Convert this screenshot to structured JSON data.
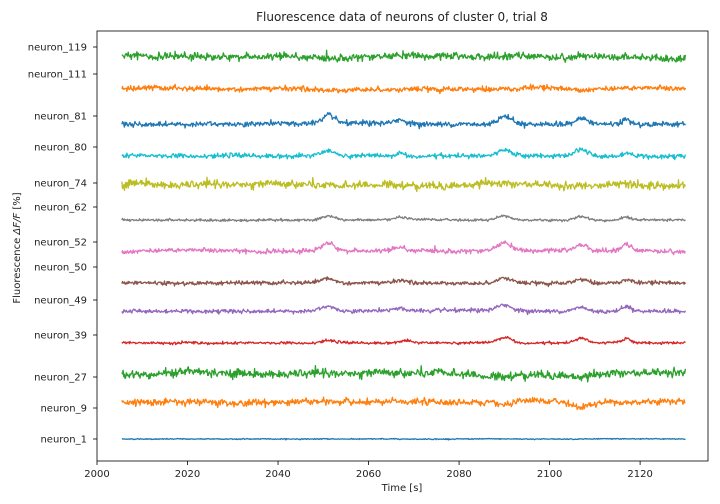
{
  "chart_data": {
    "type": "line",
    "title": "Fluorescence data of neurons of cluster 0, trial 8",
    "xlabel": "Time [s]",
    "ylabel_prefix": "Fluorescence ",
    "ylabel_math": "ΔF/F",
    "ylabel_suffix": " [%]",
    "xlim": [
      2000,
      2135
    ],
    "x_ticks": [
      2000,
      2020,
      2040,
      2060,
      2080,
      2100,
      2120
    ],
    "x_range": [
      2005.5,
      2130
    ],
    "grid": false,
    "legend": "none",
    "series": [
      {
        "name": "neuron_1",
        "color": "#1f77b4",
        "noise": 0.15,
        "events": []
      },
      {
        "name": "neuron_9",
        "color": "#ff7f0e",
        "noise": 1.0,
        "events": [
          [
            2090,
            -2.5,
            2.0
          ],
          [
            2107,
            -3.0,
            2.0
          ],
          [
            2127,
            1.0,
            3.0
          ]
        ]
      },
      {
        "name": "neuron_27",
        "color": "#2ca02c",
        "noise": 1.3,
        "events": [
          [
            2020,
            1.5,
            4.0
          ],
          [
            2088,
            -2.0,
            3.0
          ],
          [
            2107,
            -1.5,
            3.0
          ],
          [
            2127,
            1.5,
            3.0
          ]
        ]
      },
      {
        "name": "neuron_39",
        "color": "#d62728",
        "noise": 0.4,
        "events": [
          [
            2020,
            0.8,
            1.2
          ],
          [
            2051,
            1.5,
            1.4
          ],
          [
            2068,
            1.5,
            1.4
          ],
          [
            2090,
            3.5,
            1.6
          ],
          [
            2107,
            3.0,
            1.3
          ],
          [
            2117,
            2.5,
            1.0
          ]
        ]
      },
      {
        "name": "neuron_49",
        "color": "#9467bd",
        "noise": 0.6,
        "events": [
          [
            2051,
            3.0,
            1.4
          ],
          [
            2067,
            1.5,
            1.2
          ],
          [
            2090,
            3.5,
            1.6
          ],
          [
            2107,
            2.5,
            1.3
          ],
          [
            2117,
            3.0,
            1.0
          ]
        ]
      },
      {
        "name": "neuron_50",
        "color": "#8c564b",
        "noise": 0.6,
        "events": [
          [
            2051,
            3.0,
            1.4
          ],
          [
            2067,
            1.5,
            1.2
          ],
          [
            2090,
            3.5,
            1.6
          ],
          [
            2107,
            2.5,
            1.3
          ],
          [
            2117,
            2.5,
            1.0
          ]
        ]
      },
      {
        "name": "neuron_52",
        "color": "#e377c2",
        "noise": 0.7,
        "events": [
          [
            2051,
            5.0,
            1.4
          ],
          [
            2067,
            2.0,
            1.2
          ],
          [
            2090,
            5.0,
            1.6
          ],
          [
            2107,
            4.0,
            1.3
          ],
          [
            2117,
            3.5,
            1.0
          ]
        ]
      },
      {
        "name": "neuron_62",
        "color": "#7f7f7f",
        "noise": 0.4,
        "events": [
          [
            2051,
            2.5,
            1.4
          ],
          [
            2067,
            1.5,
            1.2
          ],
          [
            2090,
            2.5,
            1.6
          ],
          [
            2107,
            2.5,
            1.3
          ],
          [
            2117,
            2.0,
            1.0
          ]
        ]
      },
      {
        "name": "neuron_74",
        "color": "#bcbd22",
        "noise": 1.2,
        "events": [
          [
            2010,
            1.5,
            2.0
          ],
          [
            2052,
            -1.5,
            2.0
          ],
          [
            2086,
            1.0,
            2.5
          ],
          [
            2108,
            -1.0,
            2.5
          ],
          [
            2117,
            1.5,
            2.0
          ]
        ]
      },
      {
        "name": "neuron_80",
        "color": "#17becf",
        "noise": 0.7,
        "events": [
          [
            2051,
            3.0,
            1.4
          ],
          [
            2067,
            1.5,
            1.2
          ],
          [
            2090,
            3.0,
            1.6
          ],
          [
            2107,
            4.5,
            1.3
          ],
          [
            2117,
            2.0,
            1.0
          ]
        ]
      },
      {
        "name": "neuron_81",
        "color": "#1f77b4",
        "noise": 0.8,
        "events": [
          [
            2051,
            5.0,
            1.4
          ],
          [
            2067,
            2.5,
            1.2
          ],
          [
            2090,
            5.0,
            1.6
          ],
          [
            2107,
            4.0,
            1.3
          ],
          [
            2117,
            3.0,
            1.0
          ]
        ]
      },
      {
        "name": "neuron_111",
        "color": "#ff7f0e",
        "noise": 0.8,
        "events": [
          [
            2013,
            0.8,
            3.0
          ],
          [
            2052,
            -0.8,
            3.0
          ],
          [
            2096,
            0.8,
            3.0
          ]
        ]
      },
      {
        "name": "neuron_119",
        "color": "#2ca02c",
        "noise": 1.1,
        "events": [
          [
            2010,
            1.5,
            2.5
          ],
          [
            2018,
            1.0,
            2.5
          ],
          [
            2050,
            -1.0,
            3.0
          ],
          [
            2068,
            1.0,
            2.5
          ],
          [
            2108,
            1.0,
            2.5
          ],
          [
            2127,
            -0.8,
            2.5
          ]
        ]
      }
    ]
  }
}
